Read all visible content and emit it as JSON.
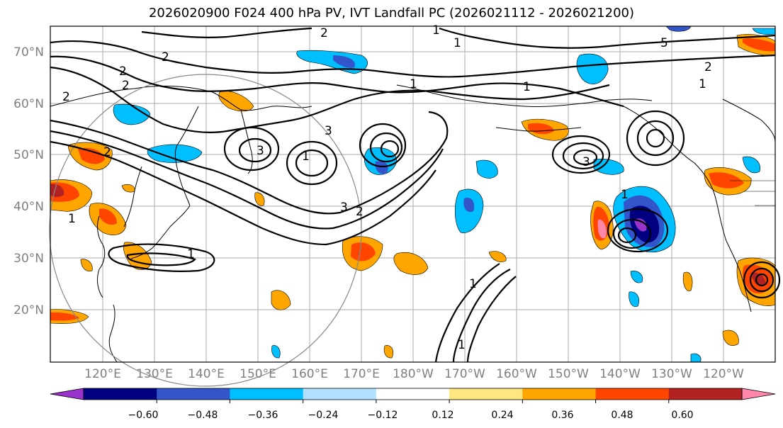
{
  "title": "2026020900 F024 400 hPa PV, IVT Landfall PC (2026021112 - 2026021200)",
  "latitude_labels": [
    "70°N",
    "60°N",
    "50°N",
    "40°N",
    "30°N",
    "20°N"
  ],
  "longitude_labels": [
    "120°E",
    "130°E",
    "140°E",
    "150°E",
    "160°E",
    "170°E",
    "180°W",
    "170°W",
    "160°W",
    "150°W",
    "140°W",
    "130°W",
    "120°W"
  ],
  "colorbar": {
    "colors": [
      "#9933cc",
      "#000080",
      "#3355cc",
      "#00bfff",
      "#b0e0ff",
      "#ffffff",
      "#ffe680",
      "#ffa500",
      "#ff4500",
      "#b22222",
      "#ff88aa"
    ],
    "tick_labels": [
      "−0.60",
      "−0.48",
      "−0.36",
      "−0.24",
      "−0.12",
      "0.12",
      "0.24",
      "0.36",
      "0.48",
      "0.60"
    ]
  },
  "contour_labels": [
    "2",
    "2",
    "2",
    "2",
    "2",
    "1",
    "5",
    "1",
    "2",
    "1",
    "1",
    "3",
    "3",
    "1",
    "1",
    "3",
    "2",
    "1",
    "1",
    "1",
    "3",
    "1",
    "2",
    "1"
  ],
  "colors": {
    "grid": "#aaaaaa",
    "label_gray": "#7f7f7f",
    "contour": "#000000"
  }
}
